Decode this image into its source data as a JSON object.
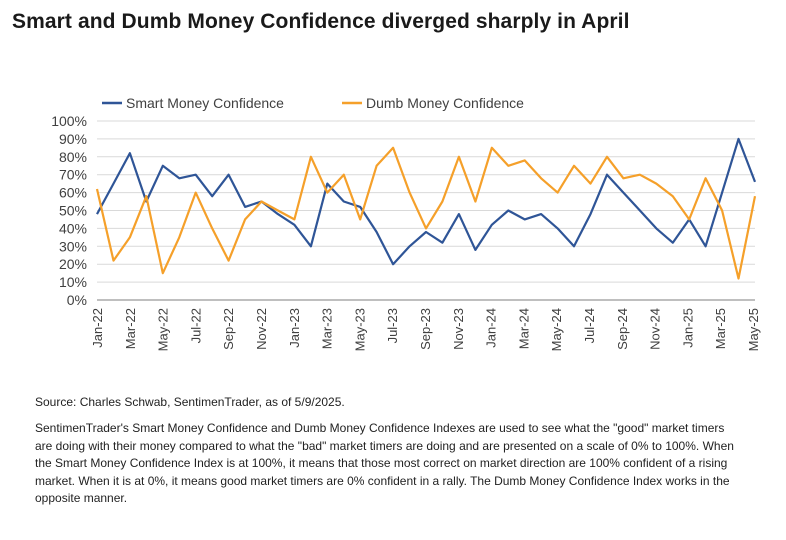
{
  "headline": "Smart and Dumb Money Confidence diverged sharply in April",
  "source": "Source: Charles Schwab, SentimenTrader, as of 5/9/2025.",
  "note": "SentimenTrader's Smart Money Confidence and Dumb Money Confidence Indexes are used to see what the \"good\" market timers are doing with their money compared to what the \"bad\" market timers are doing and are presented on a scale of 0% to 100%. When the Smart Money Confidence Index is at 100%, it means that those most correct on market direction are 100% confident of a rising market. When it is at 0%, it means good market timers are 0% confident in a rally. The Dumb Money Confidence Index works in the opposite manner.",
  "colors": {
    "smart": "#2f5597",
    "dumb": "#f5a02a",
    "axis": "#595959",
    "grid": "#d9d9d9"
  },
  "chart_data": {
    "type": "line",
    "title": "",
    "xlabel": "",
    "ylabel": "",
    "ylim": [
      0,
      100
    ],
    "yticks": [
      "0%",
      "10%",
      "20%",
      "30%",
      "40%",
      "50%",
      "60%",
      "70%",
      "80%",
      "90%",
      "100%"
    ],
    "x_tick_labels": [
      "Jan-22",
      "Mar-22",
      "May-22",
      "Jul-22",
      "Sep-22",
      "Nov-22",
      "Jan-23",
      "Mar-23",
      "May-23",
      "Jul-23",
      "Sep-23",
      "Nov-23",
      "Jan-24",
      "Mar-24",
      "May-24",
      "Jul-24",
      "Sep-24",
      "Nov-24",
      "Jan-25",
      "Mar-25",
      "May-25"
    ],
    "grid": true,
    "legend_position": "top",
    "x": [
      "Jan-22",
      "Feb-22",
      "Mar-22",
      "Apr-22",
      "May-22",
      "Jun-22",
      "Jul-22",
      "Aug-22",
      "Sep-22",
      "Oct-22",
      "Nov-22",
      "Dec-22",
      "Jan-23",
      "Feb-23",
      "Mar-23",
      "Apr-23",
      "May-23",
      "Jun-23",
      "Jul-23",
      "Aug-23",
      "Sep-23",
      "Oct-23",
      "Nov-23",
      "Dec-23",
      "Jan-24",
      "Feb-24",
      "Mar-24",
      "Apr-24",
      "May-24",
      "Jun-24",
      "Jul-24",
      "Aug-24",
      "Sep-24",
      "Oct-24",
      "Nov-24",
      "Dec-24",
      "Jan-25",
      "Feb-25",
      "Mar-25",
      "Apr-25",
      "May-25"
    ],
    "series": [
      {
        "name": "Smart Money Confidence",
        "values": [
          48,
          65,
          82,
          55,
          75,
          68,
          70,
          58,
          70,
          52,
          55,
          48,
          42,
          30,
          65,
          55,
          52,
          38,
          20,
          30,
          38,
          32,
          48,
          28,
          42,
          50,
          45,
          48,
          40,
          30,
          48,
          70,
          60,
          50,
          40,
          32,
          45,
          30,
          60,
          90,
          66
        ]
      },
      {
        "name": "Dumb Money Confidence",
        "values": [
          62,
          22,
          35,
          58,
          15,
          35,
          60,
          40,
          22,
          45,
          55,
          50,
          45,
          80,
          60,
          70,
          45,
          75,
          85,
          60,
          40,
          55,
          80,
          55,
          85,
          75,
          78,
          68,
          60,
          75,
          65,
          80,
          68,
          70,
          65,
          58,
          45,
          68,
          50,
          12,
          58
        ]
      }
    ]
  }
}
